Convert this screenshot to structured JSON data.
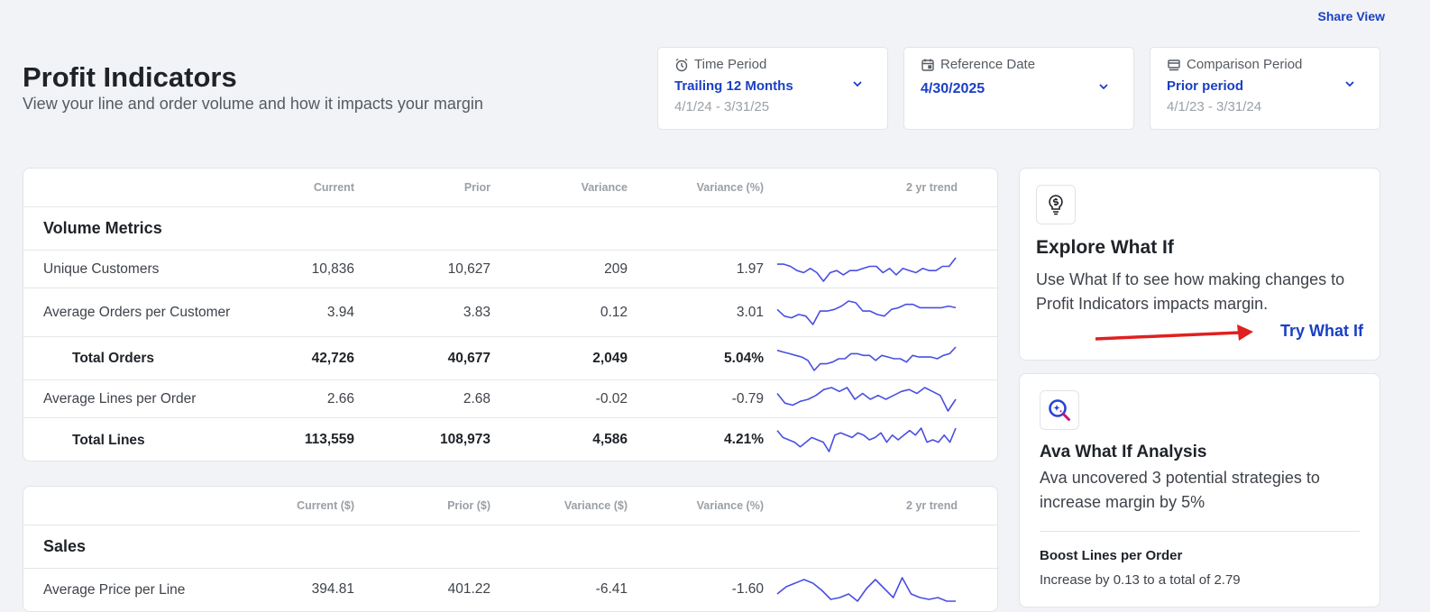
{
  "header": {
    "share_label": "Share View",
    "title": "Profit Indicators",
    "subtitle": "View your line and order volume and how it impacts your margin"
  },
  "filters": {
    "time_period": {
      "label": "Time Period",
      "value": "Trailing 12 Months",
      "range": "4/1/24 - 3/31/25",
      "icon": "alarm-clock-icon"
    },
    "reference_date": {
      "label": "Reference Date",
      "value": "4/30/2025",
      "icon": "calendar-icon"
    },
    "comparison_period": {
      "label": "Comparison Period",
      "value": "Prior period",
      "range": "4/1/23 - 3/31/24",
      "icon": "compare-icon"
    }
  },
  "volume_table": {
    "columns": [
      "",
      "Current",
      "Prior",
      "Variance",
      "Variance (%)",
      "2 yr trend"
    ],
    "section": "Volume Metrics",
    "rows": [
      {
        "label": "Unique Customers",
        "current": "10,836",
        "prior": "10,627",
        "variance": "209",
        "variance_pct": "1.97",
        "total": false,
        "trend": [
          20,
          20,
          19,
          17,
          16,
          18,
          16,
          12,
          16,
          17,
          15,
          17,
          17,
          18,
          19,
          19,
          16,
          18,
          15,
          18,
          17,
          16,
          18,
          17,
          17,
          19,
          19,
          23
        ]
      },
      {
        "label": "Average Orders per Customer",
        "current": "3.94",
        "prior": "3.83",
        "variance": "0.12",
        "variance_pct": "3.01",
        "total": false,
        "trend": [
          18,
          14,
          13,
          15,
          14,
          9,
          17,
          17,
          18,
          20,
          23,
          22,
          17,
          17,
          15,
          14,
          18,
          19,
          21,
          21,
          19,
          19,
          19,
          19,
          20,
          19
        ]
      },
      {
        "label": "Total Orders",
        "current": "42,726",
        "prior": "40,677",
        "variance": "2,049",
        "variance_pct": "5.04%",
        "total": true,
        "trend": [
          22,
          21,
          20,
          19,
          18,
          16,
          10,
          14,
          14,
          15,
          17,
          17,
          20,
          20,
          19,
          19,
          16,
          19,
          18,
          17,
          17,
          15,
          19,
          18,
          18,
          18,
          17,
          19,
          20,
          24
        ]
      },
      {
        "label": "Average Lines per Order",
        "current": "2.66",
        "prior": "2.68",
        "variance": "-0.02",
        "variance_pct": "-0.79",
        "total": false,
        "trend": [
          16,
          11,
          10,
          12,
          13,
          15,
          18,
          19,
          17,
          19,
          13,
          16,
          13,
          15,
          13,
          15,
          17,
          18,
          16,
          19,
          17,
          15,
          7,
          13
        ]
      },
      {
        "label": "Total Lines",
        "current": "113,559",
        "prior": "108,973",
        "variance": "4,586",
        "variance_pct": "4.21%",
        "total": true,
        "trend": [
          19,
          16,
          15,
          14,
          12,
          14,
          16,
          15,
          14,
          10,
          17,
          18,
          17,
          16,
          18,
          17,
          15,
          16,
          18,
          14,
          17,
          15,
          17,
          19,
          17,
          20,
          14,
          15,
          14,
          17,
          14,
          20
        ]
      }
    ]
  },
  "sales_table": {
    "columns": [
      "",
      "Current ($)",
      "Prior ($)",
      "Variance ($)",
      "Variance (%)",
      "2 yr trend"
    ],
    "section": "Sales",
    "rows": [
      {
        "label": "Average Price per Line",
        "current": "394.81",
        "prior": "401.22",
        "variance": "-6.41",
        "variance_pct": "-1.60",
        "total": false,
        "trend": [
          12,
          16,
          18,
          20,
          18,
          14,
          9,
          10,
          12,
          8,
          15,
          20,
          15,
          10,
          21,
          12,
          10,
          9,
          10,
          8,
          8
        ]
      }
    ]
  },
  "explore": {
    "icon": "lightbulb-dollar-icon",
    "title": "Explore What If",
    "text": "Use What If to see how making changes to Profit Indicators impacts margin.",
    "link": "Try What If"
  },
  "ava": {
    "icon": "ava-sparkle-search-icon",
    "title": "Ava What If Analysis",
    "text": "Ava uncovered 3 potential strategies to increase margin by 5%",
    "strategy_title": "Boost Lines per Order",
    "strategy_text": "Increase by 0.13 to a total of 2.79"
  },
  "colors": {
    "accent": "#1a3fc4",
    "sparkline": "#4a4fe0",
    "arrow": "#e02020"
  }
}
